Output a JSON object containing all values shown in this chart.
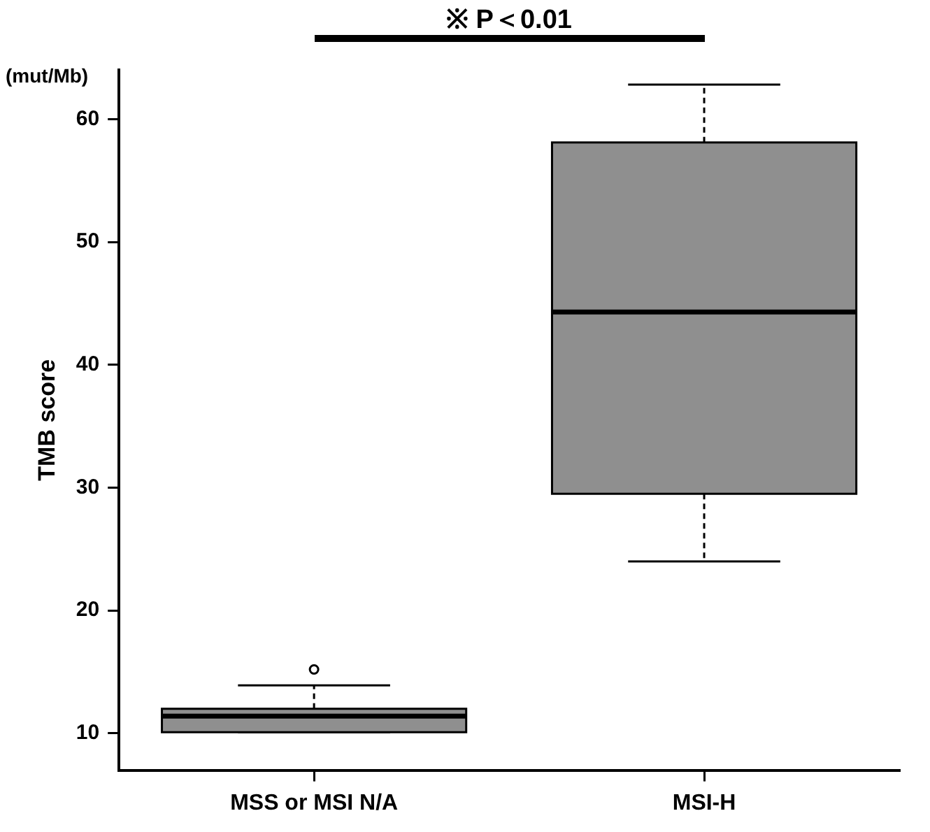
{
  "chart_data": {
    "type": "box",
    "ylabel": "TMB score",
    "annotations": [
      "(mut/Mb)",
      "※ P＜0.01"
    ],
    "categories": [
      "MSS or MSI N/A",
      "MSI-H"
    ],
    "color": "#8f8f8f",
    "boxes": [
      {
        "low": 10.1,
        "q1": 10.1,
        "median": 11.4,
        "q3": 12.0,
        "high": 13.9,
        "outliers": [
          15.2
        ]
      },
      {
        "low": 24.0,
        "q1": 29.5,
        "median": 44.3,
        "q3": 58.1,
        "high": 62.8
      }
    ],
    "ylim": [
      7,
      64
    ],
    "yticks": [
      10,
      20,
      30,
      40,
      50,
      60
    ]
  }
}
